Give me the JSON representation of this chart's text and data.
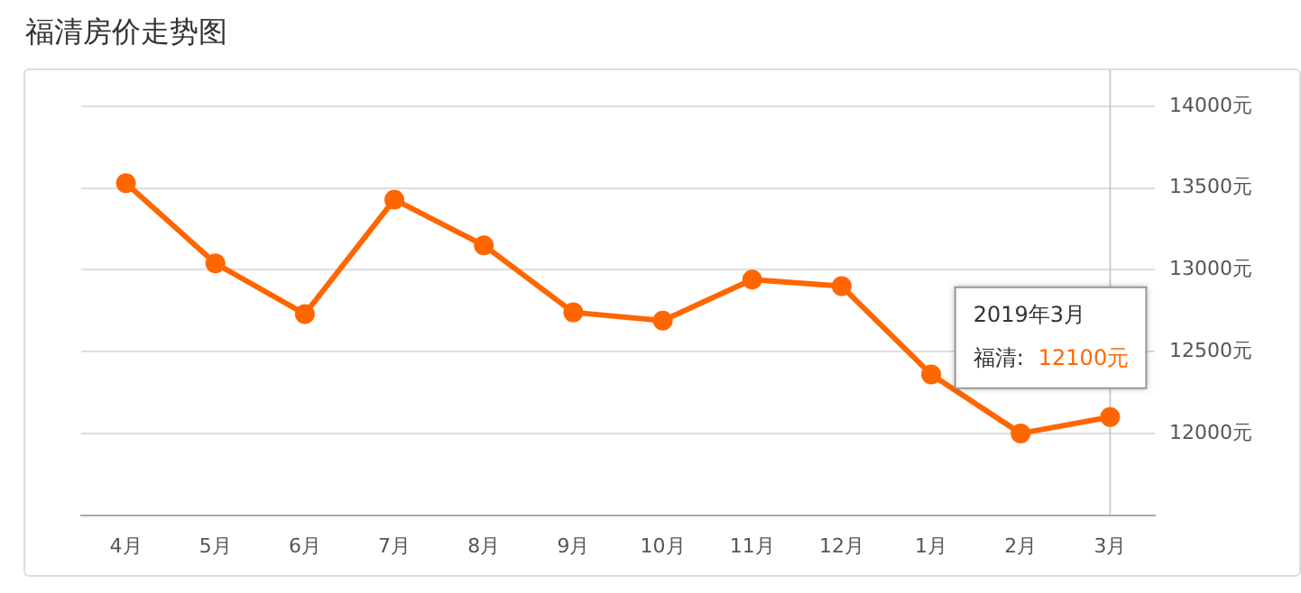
{
  "chart_data": {
    "type": "line",
    "title": "福清房价走势图",
    "categories": [
      "4月",
      "5月",
      "6月",
      "7月",
      "8月",
      "9月",
      "10月",
      "11月",
      "12月",
      "1月",
      "2月",
      "3月"
    ],
    "series": [
      {
        "name": "福清:",
        "color": "#ff6600",
        "values": [
          13530,
          13040,
          12730,
          13430,
          13150,
          12740,
          12690,
          12940,
          12900,
          12360,
          12000,
          12100
        ],
        "value_labels": [
          null,
          null,
          null,
          null,
          null,
          null,
          null,
          null,
          null,
          null,
          null,
          "12100元"
        ]
      }
    ],
    "ylim": [
      11500,
      14000
    ],
    "yticks": [
      {
        "value": 11500,
        "label": null
      },
      {
        "value": 12000,
        "label": "12000元"
      },
      {
        "value": 12500,
        "label": "12500元"
      },
      {
        "value": 13000,
        "label": "13000元"
      },
      {
        "value": 13500,
        "label": "13500元"
      },
      {
        "value": 14000,
        "label": "14000元"
      }
    ],
    "grid": "y",
    "legend": false,
    "marker": "circle",
    "line_style": "solid",
    "ref_lines": [
      {
        "axis": "x",
        "value": "3月",
        "color": "#cccccc"
      }
    ],
    "annotations": [
      "2019年3月"
    ]
  }
}
